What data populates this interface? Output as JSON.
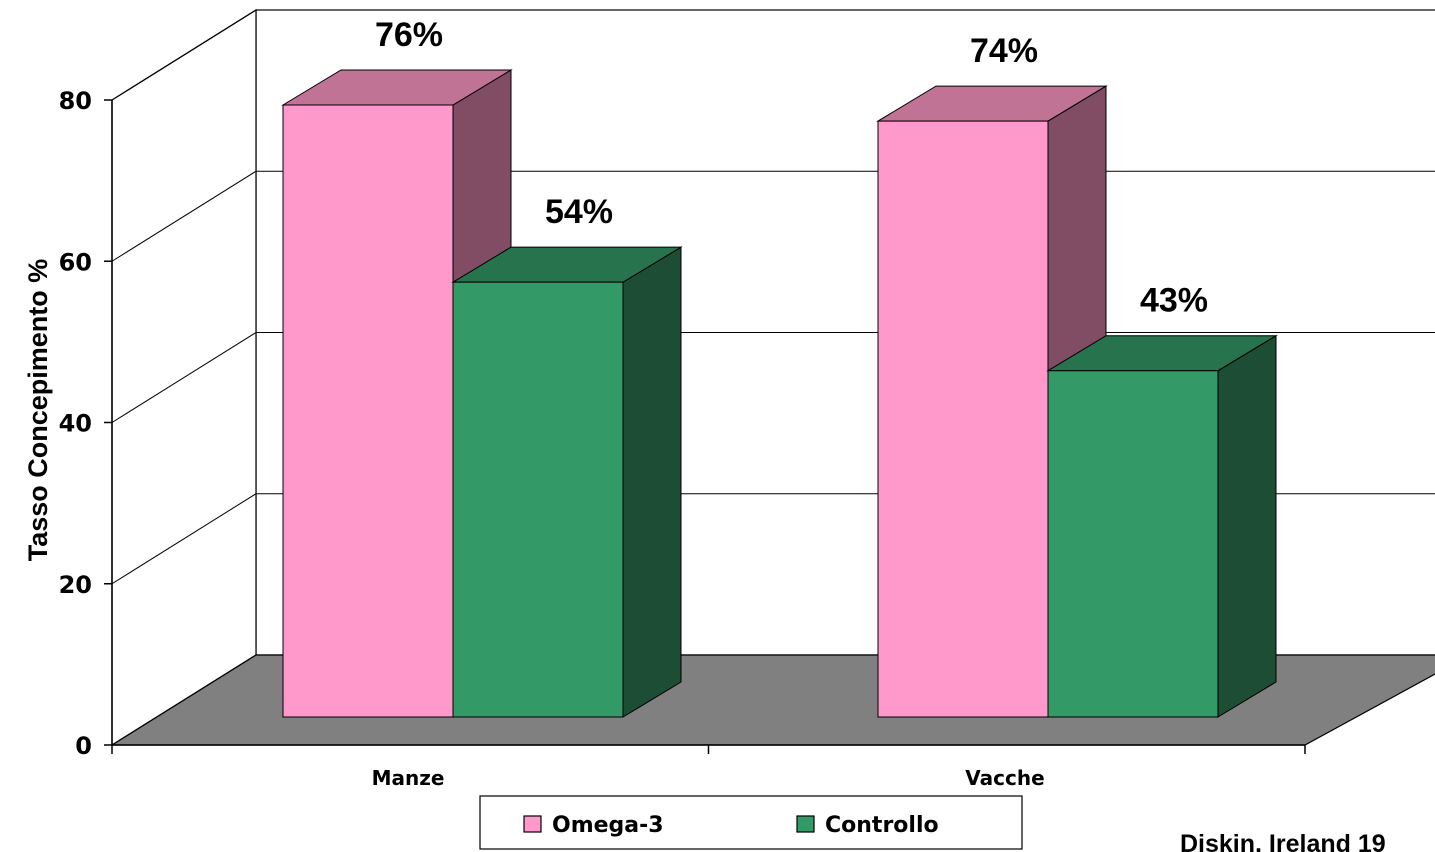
{
  "chart_data": {
    "type": "bar",
    "title": "",
    "xlabel": "",
    "ylabel": "Tasso Concepimento %",
    "categories": [
      "Manze",
      "Vacche"
    ],
    "series": [
      {
        "name": "Omega-3",
        "values": [
          76,
          74
        ],
        "labels": [
          "76%",
          "74%"
        ]
      },
      {
        "name": "Controllo",
        "values": [
          54,
          43
        ],
        "labels": [
          "54%",
          "43%"
        ]
      }
    ],
    "ylim": [
      0,
      80
    ],
    "yticks": [
      "0",
      "20",
      "40",
      "60",
      "80"
    ],
    "grid": true,
    "legend_position": "bottom",
    "style": "3d-clustered-column",
    "colors": {
      "omega_front": "#ff99cc",
      "omega_top": "#c07395",
      "omega_side": "#804d64",
      "controllo_front": "#339966",
      "controllo_top": "#26734d",
      "controllo_side": "#1d4d34",
      "floor": "#808080"
    }
  },
  "source_note": "Diskin, Ireland 19"
}
